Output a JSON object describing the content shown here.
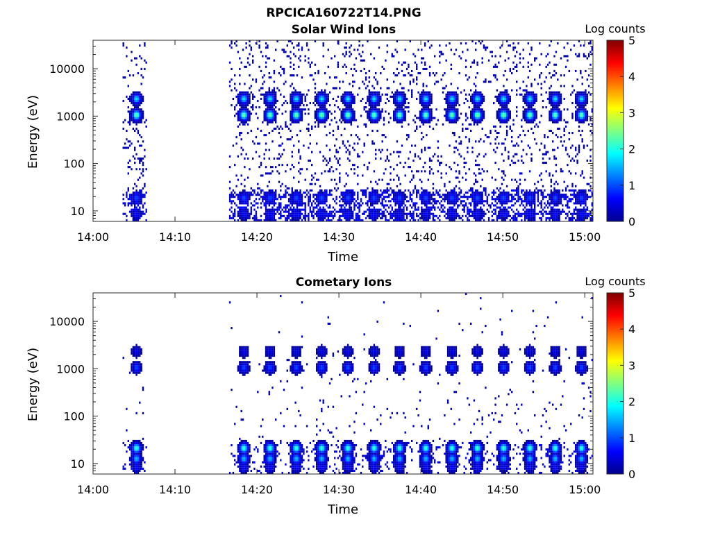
{
  "figure_title": "RPCICA160722T14.PNG",
  "colorbar_label": "Log counts",
  "colormap": [
    "#00008f",
    "#0000ff",
    "#0080ff",
    "#00ffff",
    "#80ff80",
    "#ffff00",
    "#ff8000",
    "#ff0000",
    "#800000"
  ],
  "chart_data": [
    {
      "type": "heatmap",
      "title": "Solar Wind Ions",
      "xlabel": "Time",
      "ylabel": "Energy (eV)",
      "x_ticks": [
        "14:00",
        "14:10",
        "14:20",
        "14:30",
        "14:40",
        "14:50",
        "15:00"
      ],
      "x_range_min": [
        0,
        61
      ],
      "y_ticks": [
        "10",
        "100",
        "1000",
        "10000"
      ],
      "y_scale": "log",
      "y_range": [
        6,
        40000
      ],
      "colorbar": {
        "label": "Log counts",
        "ticks": [
          "0",
          "1",
          "2",
          "3",
          "4",
          "5"
        ],
        "range": [
          0,
          5
        ]
      },
      "grid": false,
      "data_windows_min": [
        [
          3.5,
          6.5
        ],
        [
          16.5,
          61
        ]
      ],
      "bursts": {
        "times_min": [
          5.2,
          18.3,
          21.5,
          24.7,
          27.8,
          31.0,
          34.2,
          37.3,
          40.5,
          43.7,
          46.8,
          50.0,
          53.2,
          56.3,
          59.5
        ],
        "peaks": [
          {
            "energy_eV": 1000,
            "log_counts": 2.5
          },
          {
            "energy_eV": 2200,
            "log_counts": 1.8
          },
          {
            "energy_eV": 18,
            "log_counts": 1.0
          },
          {
            "energy_eV": 8,
            "log_counts": 0.6
          }
        ]
      }
    },
    {
      "type": "heatmap",
      "title": "Cometary Ions",
      "xlabel": "Time",
      "ylabel": "Energy (eV)",
      "x_ticks": [
        "14:00",
        "14:10",
        "14:20",
        "14:30",
        "14:40",
        "14:50",
        "15:00"
      ],
      "x_range_min": [
        0,
        61
      ],
      "y_ticks": [
        "10",
        "100",
        "1000",
        "10000"
      ],
      "y_scale": "log",
      "y_range": [
        6,
        40000
      ],
      "colorbar": {
        "label": "Log counts",
        "ticks": [
          "0",
          "1",
          "2",
          "3",
          "4",
          "5"
        ],
        "range": [
          0,
          5
        ]
      },
      "grid": false,
      "data_windows_min": [
        [
          3.5,
          6.5
        ],
        [
          16.5,
          61
        ]
      ],
      "bursts": {
        "times_min": [
          5.2,
          18.3,
          21.5,
          24.7,
          27.8,
          31.0,
          34.2,
          37.3,
          40.5,
          43.7,
          46.8,
          50.0,
          53.2,
          56.3,
          59.5
        ],
        "peaks": [
          {
            "energy_eV": 20,
            "log_counts": 2.2
          },
          {
            "energy_eV": 12,
            "log_counts": 1.6
          },
          {
            "energy_eV": 8,
            "log_counts": 0.6
          },
          {
            "energy_eV": 1000,
            "log_counts": 1.0
          },
          {
            "energy_eV": 2200,
            "log_counts": 0.5
          }
        ]
      }
    }
  ]
}
